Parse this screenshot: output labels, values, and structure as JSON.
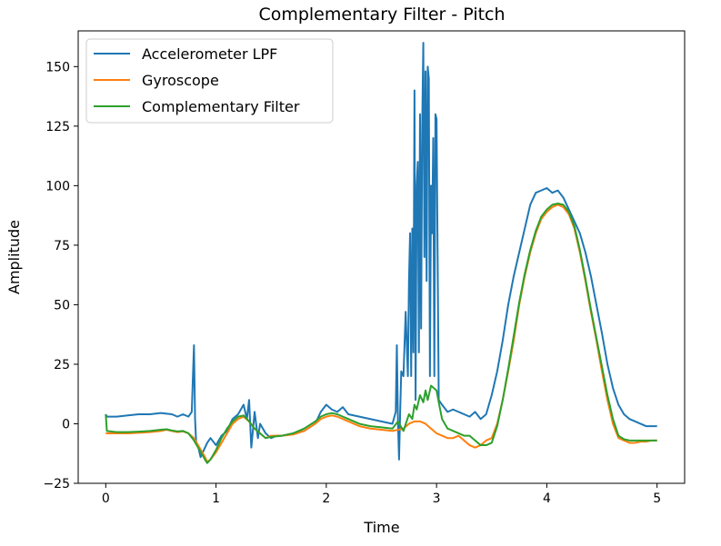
{
  "chart_data": {
    "type": "line",
    "title": "Complementary Filter - Pitch",
    "xlabel": "Time",
    "ylabel": "Amplitude",
    "xlim": [
      -0.25,
      5.25
    ],
    "ylim": [
      -25,
      165
    ],
    "xticks": [
      0,
      1,
      2,
      3,
      4,
      5
    ],
    "xtick_labels": [
      "0",
      "1",
      "2",
      "3",
      "4",
      "5"
    ],
    "yticks": [
      -25,
      0,
      25,
      50,
      75,
      100,
      125,
      150
    ],
    "ytick_labels": [
      "−25",
      "0",
      "25",
      "50",
      "75",
      "100",
      "125",
      "150"
    ],
    "grid": false,
    "legend_position": "upper left",
    "series": [
      {
        "name": "Accelerometer LPF",
        "color": "#1f77b4",
        "x": [
          0,
          0.01,
          0.1,
          0.2,
          0.3,
          0.4,
          0.5,
          0.6,
          0.65,
          0.7,
          0.75,
          0.78,
          0.8,
          0.81,
          0.82,
          0.84,
          0.86,
          0.88,
          0.9,
          0.92,
          0.95,
          1.0,
          1.05,
          1.1,
          1.15,
          1.2,
          1.25,
          1.28,
          1.3,
          1.32,
          1.35,
          1.38,
          1.4,
          1.45,
          1.5,
          1.55,
          1.6,
          1.7,
          1.8,
          1.9,
          1.95,
          2.0,
          2.05,
          2.1,
          2.15,
          2.2,
          2.3,
          2.4,
          2.5,
          2.6,
          2.63,
          2.64,
          2.65,
          2.66,
          2.67,
          2.68,
          2.7,
          2.72,
          2.74,
          2.75,
          2.76,
          2.77,
          2.78,
          2.79,
          2.8,
          2.81,
          2.82,
          2.83,
          2.84,
          2.85,
          2.86,
          2.87,
          2.88,
          2.89,
          2.9,
          2.91,
          2.92,
          2.93,
          2.94,
          2.95,
          2.96,
          2.97,
          2.98,
          2.99,
          3.0,
          3.02,
          3.05,
          3.1,
          3.15,
          3.2,
          3.25,
          3.3,
          3.35,
          3.4,
          3.45,
          3.5,
          3.55,
          3.6,
          3.65,
          3.7,
          3.75,
          3.8,
          3.85,
          3.9,
          3.95,
          4.0,
          4.05,
          4.1,
          4.15,
          4.2,
          4.25,
          4.3,
          4.35,
          4.4,
          4.45,
          4.5,
          4.55,
          4.6,
          4.65,
          4.7,
          4.75,
          4.8,
          4.85,
          4.9,
          4.95,
          5.0
        ],
        "y": [
          4,
          3,
          3,
          3.5,
          4,
          4,
          4.5,
          4,
          3,
          4,
          3,
          5,
          33,
          2,
          -8,
          -10,
          -14,
          -12,
          -10,
          -8,
          -6,
          -9,
          -5,
          -3,
          2,
          4,
          8,
          2,
          10,
          -10,
          5,
          -6,
          0,
          -4,
          -6,
          -5,
          -5,
          -4,
          -3,
          0,
          5,
          8,
          6,
          5,
          7,
          4,
          3,
          2,
          1,
          0,
          5,
          33,
          1,
          -15,
          5,
          22,
          20,
          47,
          20,
          60,
          80,
          20,
          82,
          30,
          140,
          10,
          100,
          110,
          30,
          130,
          40,
          125,
          160,
          70,
          148,
          60,
          150,
          145,
          20,
          100,
          80,
          120,
          20,
          130,
          128,
          10,
          8,
          5,
          6,
          5,
          4,
          3,
          5,
          2,
          4,
          12,
          22,
          35,
          50,
          62,
          72,
          82,
          92,
          97,
          98,
          99,
          97,
          98,
          95,
          90,
          85,
          80,
          72,
          62,
          50,
          38,
          25,
          15,
          8,
          4,
          2,
          1,
          0,
          -1,
          -1,
          -1
        ]
      },
      {
        "name": "Gyroscope",
        "color": "#ff7f0e",
        "x": [
          0,
          0.01,
          0.1,
          0.2,
          0.3,
          0.4,
          0.5,
          0.55,
          0.6,
          0.65,
          0.7,
          0.75,
          0.8,
          0.85,
          0.9,
          0.92,
          0.95,
          1.0,
          1.05,
          1.1,
          1.15,
          1.2,
          1.25,
          1.3,
          1.35,
          1.4,
          1.45,
          1.5,
          1.6,
          1.7,
          1.8,
          1.9,
          1.95,
          2.0,
          2.05,
          2.1,
          2.15,
          2.2,
          2.3,
          2.4,
          2.5,
          2.6,
          2.7,
          2.75,
          2.8,
          2.85,
          2.9,
          2.95,
          3.0,
          3.05,
          3.1,
          3.15,
          3.2,
          3.25,
          3.3,
          3.35,
          3.4,
          3.45,
          3.5,
          3.55,
          3.6,
          3.65,
          3.7,
          3.75,
          3.8,
          3.85,
          3.9,
          3.95,
          4.0,
          4.05,
          4.1,
          4.15,
          4.2,
          4.25,
          4.3,
          4.35,
          4.4,
          4.45,
          4.5,
          4.55,
          4.6,
          4.65,
          4.7,
          4.75,
          4.8,
          4.85,
          4.9,
          4.95,
          5.0
        ],
        "y": [
          -4,
          -4,
          -4,
          -4,
          -3.8,
          -3.5,
          -3,
          -2.5,
          -3,
          -3.5,
          -3.2,
          -4,
          -6,
          -10,
          -14,
          -16,
          -15,
          -12,
          -8,
          -4,
          0,
          2,
          3,
          1,
          -2,
          -4,
          -6,
          -5,
          -5,
          -4.5,
          -3,
          0,
          2,
          3,
          3.5,
          3,
          2,
          1,
          -1,
          -2,
          -2.5,
          -3,
          -2,
          0,
          1,
          1,
          0,
          -2,
          -4,
          -5,
          -6,
          -6,
          -5,
          -7,
          -9,
          -10,
          -9,
          -7,
          -6,
          0,
          10,
          22,
          35,
          50,
          62,
          72,
          80,
          86,
          89,
          91,
          92,
          91,
          88,
          82,
          72,
          60,
          47,
          35,
          22,
          10,
          0,
          -6,
          -7,
          -8,
          -8,
          -7.5,
          -7.5,
          -7,
          -7
        ]
      },
      {
        "name": "Complementary Filter",
        "color": "#2ca02c",
        "x": [
          0,
          0.01,
          0.1,
          0.2,
          0.3,
          0.4,
          0.5,
          0.55,
          0.6,
          0.65,
          0.7,
          0.75,
          0.8,
          0.85,
          0.9,
          0.92,
          0.95,
          1.0,
          1.05,
          1.1,
          1.15,
          1.2,
          1.25,
          1.3,
          1.35,
          1.4,
          1.45,
          1.5,
          1.6,
          1.7,
          1.8,
          1.9,
          1.95,
          2.0,
          2.05,
          2.1,
          2.15,
          2.2,
          2.3,
          2.4,
          2.5,
          2.6,
          2.65,
          2.7,
          2.75,
          2.78,
          2.8,
          2.82,
          2.85,
          2.88,
          2.9,
          2.92,
          2.95,
          3.0,
          3.02,
          3.05,
          3.1,
          3.15,
          3.2,
          3.25,
          3.3,
          3.35,
          3.4,
          3.45,
          3.5,
          3.55,
          3.6,
          3.65,
          3.7,
          3.75,
          3.8,
          3.85,
          3.9,
          3.95,
          4.0,
          4.05,
          4.1,
          4.15,
          4.2,
          4.25,
          4.3,
          4.35,
          4.4,
          4.45,
          4.5,
          4.55,
          4.6,
          4.65,
          4.7,
          4.75,
          4.8,
          4.85,
          4.9,
          4.95,
          5.0
        ],
        "y": [
          4,
          -3,
          -3.5,
          -3.5,
          -3.3,
          -3,
          -2.5,
          -2.3,
          -2.8,
          -3.2,
          -3,
          -4,
          -7,
          -11,
          -15,
          -16.5,
          -15,
          -11,
          -6,
          -2,
          1,
          3,
          3.5,
          1,
          -2,
          -4,
          -6,
          -5.5,
          -5,
          -4,
          -2,
          1,
          3,
          4,
          4.5,
          4,
          3,
          2,
          0,
          -1,
          -1.5,
          -2,
          1,
          -3,
          4,
          2,
          8,
          6,
          12,
          9,
          14,
          10,
          16,
          14,
          9,
          2,
          -2,
          -3,
          -4,
          -5,
          -5,
          -7,
          -9,
          -9,
          -8,
          -1,
          10,
          23,
          37,
          51,
          63,
          73,
          81,
          87,
          90,
          92,
          92.5,
          92,
          89,
          83,
          73,
          61,
          48,
          36,
          24,
          12,
          2,
          -5,
          -6.5,
          -7,
          -7,
          -7,
          -7,
          -7,
          -7
        ]
      }
    ]
  }
}
